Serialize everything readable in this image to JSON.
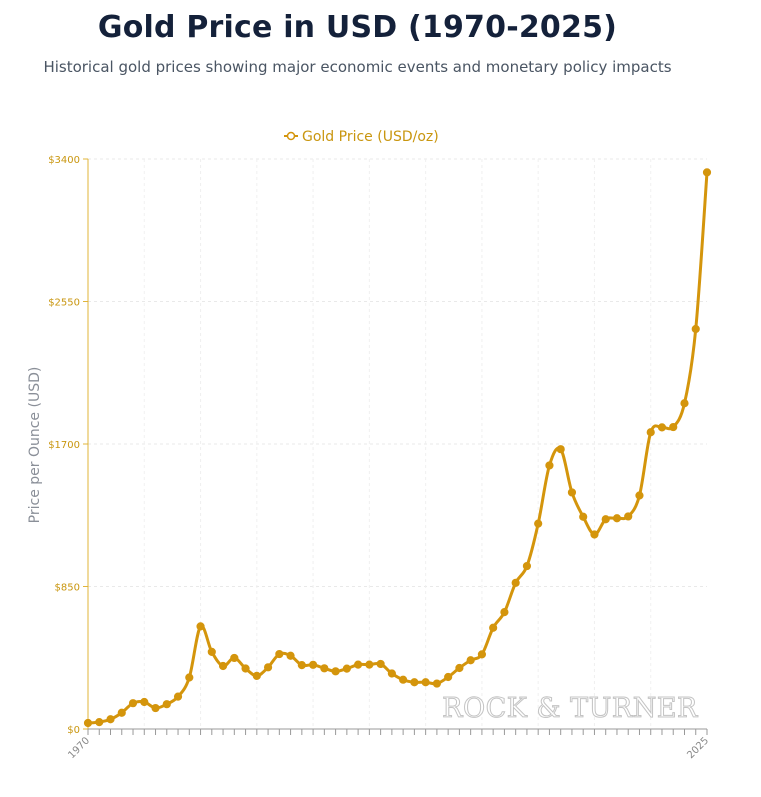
{
  "title": "Gold Price in USD (1970-2025)",
  "subtitle": "Historical gold prices showing major economic events and monetary policy impacts",
  "watermark": "ROCK & TURNER",
  "colors": {
    "series": "#d4950c",
    "axis": "#e0b43a",
    "grid": "#e9e9e9",
    "title": "#14213a"
  },
  "chart_data": {
    "type": "line",
    "title": "Gold Price in USD (1970-2025)",
    "ylabel": "Price per Ounce (USD)",
    "xlabel": "",
    "ylim": [
      0,
      3400
    ],
    "yticks": [
      0,
      850,
      1700,
      2550,
      3400
    ],
    "ytick_labels": [
      "$0",
      "$850",
      "$1700",
      "$2550",
      "$3400"
    ],
    "xticks_labeled": [
      "1970",
      "2025"
    ],
    "legend": "top-center",
    "grid": true,
    "series": [
      {
        "name": "Gold Price (USD/oz)",
        "x": [
          1970,
          1971,
          1972,
          1973,
          1974,
          1975,
          1976,
          1977,
          1978,
          1979,
          1980,
          1981,
          1982,
          1983,
          1984,
          1985,
          1986,
          1987,
          1988,
          1989,
          1990,
          1991,
          1992,
          1993,
          1994,
          1995,
          1996,
          1997,
          1998,
          1999,
          2000,
          2001,
          2002,
          2003,
          2004,
          2005,
          2006,
          2007,
          2008,
          2009,
          2010,
          2011,
          2012,
          2013,
          2014,
          2015,
          2016,
          2017,
          2018,
          2019,
          2020,
          2021,
          2022,
          2023,
          2024,
          2025
        ],
        "values": [
          36,
          41,
          58,
          97,
          154,
          161,
          125,
          148,
          193,
          307,
          612,
          460,
          376,
          424,
          361,
          317,
          368,
          447,
          437,
          381,
          383,
          362,
          344,
          360,
          384,
          384,
          388,
          331,
          294,
          279,
          279,
          271,
          310,
          364,
          410,
          445,
          604,
          697,
          872,
          972,
          1225,
          1572,
          1669,
          1411,
          1266,
          1160,
          1251,
          1257,
          1268,
          1393,
          1770,
          1799,
          1801,
          1943,
          2386,
          3320
        ]
      }
    ]
  }
}
